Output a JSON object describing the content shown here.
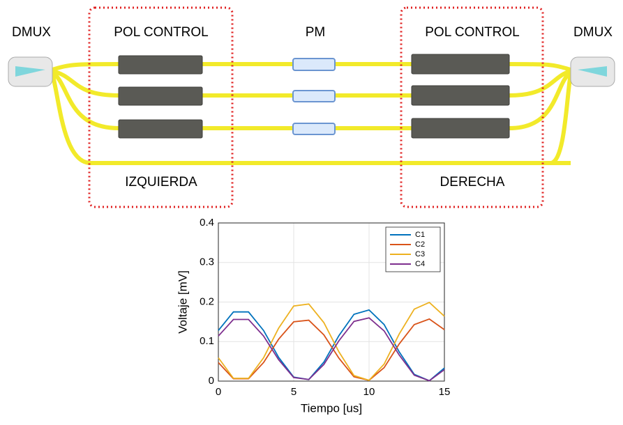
{
  "diagram": {
    "left_dmux": "DMUX",
    "left_pol_control": "POL CONTROL",
    "pm": "PM",
    "right_pol_control": "POL CONTROL",
    "right_dmux": "DMUX",
    "left_label": "IZQUIERDA",
    "right_label": "DERECHA"
  },
  "chart_data": {
    "type": "line",
    "x_label": "Tiempo [us]",
    "y_label": "Voltaje [mV]",
    "x": [
      0,
      1,
      2,
      3,
      4,
      5,
      6,
      7,
      8,
      9,
      10,
      11,
      12,
      13,
      14,
      15
    ],
    "series": [
      {
        "name": "C1",
        "color": "#0072BD",
        "values": [
          0.128,
          0.175,
          0.175,
          0.128,
          0.06,
          0.01,
          0.004,
          0.048,
          0.115,
          0.169,
          0.18,
          0.143,
          0.074,
          0.017,
          0.001,
          0.033
        ]
      },
      {
        "name": "C2",
        "color": "#D95319",
        "values": [
          0.047,
          0.006,
          0.006,
          0.047,
          0.106,
          0.15,
          0.154,
          0.117,
          0.058,
          0.011,
          0.002,
          0.034,
          0.094,
          0.143,
          0.157,
          0.13
        ]
      },
      {
        "name": "C3",
        "color": "#EDB120",
        "values": [
          0.059,
          0.007,
          0.007,
          0.059,
          0.134,
          0.19,
          0.195,
          0.148,
          0.074,
          0.014,
          0.002,
          0.043,
          0.119,
          0.182,
          0.199,
          0.164
        ]
      },
      {
        "name": "C4",
        "color": "#7E2F8E",
        "values": [
          0.114,
          0.156,
          0.156,
          0.114,
          0.054,
          0.009,
          0.004,
          0.042,
          0.102,
          0.151,
          0.16,
          0.127,
          0.066,
          0.015,
          0.001,
          0.029
        ]
      }
    ],
    "xlim": [
      0,
      15
    ],
    "ylim": [
      0,
      0.4
    ],
    "xticks": [
      0,
      5,
      10,
      15
    ],
    "yticks": [
      0,
      0.1,
      0.2,
      0.3,
      0.4
    ],
    "grid": true,
    "legend": "top-right"
  }
}
